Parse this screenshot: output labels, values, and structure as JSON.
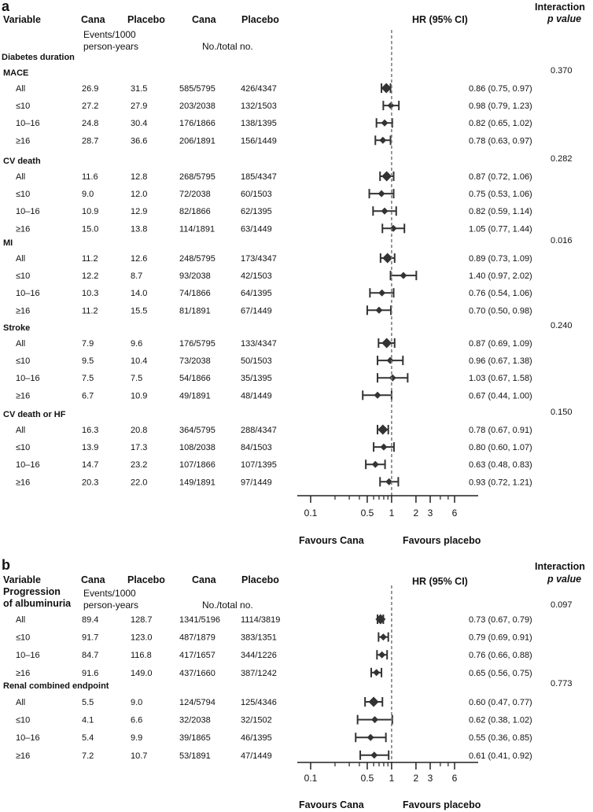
{
  "panel_a": {
    "letter": "a",
    "headers": {
      "variable": "Variable",
      "cana": "Cana",
      "placebo": "Placebo",
      "cana2": "Cana",
      "placebo2": "Placebo",
      "hr": "HR (95% CI)",
      "interaction_1": "Interaction",
      "interaction_2": "p value"
    },
    "subheaders": {
      "events_1": "Events/1000",
      "events_2": "person-years",
      "total": "No./total no.",
      "group": "Diabetes duration"
    },
    "favours": {
      "left": "Favours Cana",
      "right": "Favours placebo"
    }
  },
  "panel_b": {
    "letter": "b",
    "headers": {
      "variable": "Variable",
      "cana": "Cana",
      "placebo": "Placebo",
      "cana2": "Cana",
      "placebo2": "Placebo",
      "hr": "HR (95% CI)",
      "interaction_1": "Interaction",
      "interaction_2": "p value"
    },
    "subheaders": {
      "events_1": "Events/1000",
      "events_2": "person-years",
      "total": "No./total no.",
      "group_1": "Progression",
      "group_2": "of albuminuria"
    },
    "favours": {
      "left": "Favours Cana",
      "right": "Favours placebo"
    }
  },
  "chart_data": [
    {
      "type": "forest",
      "panel": "a",
      "scale": "log",
      "xlim": [
        0.07,
        9
      ],
      "reference_line": 1,
      "ticks": [
        "0.1",
        "0.5",
        "1",
        "2",
        "3",
        "6"
      ],
      "xlabel_left": "Favours Cana",
      "xlabel_right": "Favours placebo",
      "groups": [
        {
          "name": "MACE",
          "p_interaction": "0.370",
          "rows": [
            {
              "label": "All",
              "cana_rate": "26.9",
              "placebo_rate": "31.5",
              "cana_n": "585/5795",
              "placebo_n": "426/4347",
              "hr": 0.86,
              "lo": 0.75,
              "hi": 0.97,
              "hr_text": "0.86 (0.75, 0.97)",
              "overall": true
            },
            {
              "label": "≤10",
              "cana_rate": "27.2",
              "placebo_rate": "27.9",
              "cana_n": "203/2038",
              "placebo_n": "132/1503",
              "hr": 0.98,
              "lo": 0.79,
              "hi": 1.23,
              "hr_text": "0.98 (0.79, 1.23)",
              "overall": false
            },
            {
              "label": "10–16",
              "cana_rate": "24.8",
              "placebo_rate": "30.4",
              "cana_n": "176/1866",
              "placebo_n": "138/1395",
              "hr": 0.82,
              "lo": 0.65,
              "hi": 1.02,
              "hr_text": "0.82 (0.65, 1.02)",
              "overall": false
            },
            {
              "label": "≥16",
              "cana_rate": "28.7",
              "placebo_rate": "36.6",
              "cana_n": "206/1891",
              "placebo_n": "156/1449",
              "hr": 0.78,
              "lo": 0.63,
              "hi": 0.97,
              "hr_text": "0.78 (0.63, 0.97)",
              "overall": false
            }
          ]
        },
        {
          "name": "CV death",
          "p_interaction": "0.282",
          "rows": [
            {
              "label": "All",
              "cana_rate": "11.6",
              "placebo_rate": "12.8",
              "cana_n": "268/5795",
              "placebo_n": "185/4347",
              "hr": 0.87,
              "lo": 0.72,
              "hi": 1.06,
              "hr_text": "0.87 (0.72, 1.06)",
              "overall": true
            },
            {
              "label": "≤10",
              "cana_rate": "9.0",
              "placebo_rate": "12.0",
              "cana_n": "72/2038",
              "placebo_n": "60/1503",
              "hr": 0.75,
              "lo": 0.53,
              "hi": 1.06,
              "hr_text": "0.75 (0.53, 1.06)",
              "overall": false
            },
            {
              "label": "10–16",
              "cana_rate": "10.9",
              "placebo_rate": "12.9",
              "cana_n": "82/1866",
              "placebo_n": "62/1395",
              "hr": 0.82,
              "lo": 0.59,
              "hi": 1.14,
              "hr_text": "0.82 (0.59, 1.14)",
              "overall": false
            },
            {
              "label": "≥16",
              "cana_rate": "15.0",
              "placebo_rate": "13.8",
              "cana_n": "114/1891",
              "placebo_n": "63/1449",
              "hr": 1.05,
              "lo": 0.77,
              "hi": 1.44,
              "hr_text": "1.05 (0.77, 1.44)",
              "overall": false
            }
          ]
        },
        {
          "name": "MI",
          "p_interaction": "0.016",
          "rows": [
            {
              "label": "All",
              "cana_rate": "11.2",
              "placebo_rate": "12.6",
              "cana_n": "248/5795",
              "placebo_n": "173/4347",
              "hr": 0.89,
              "lo": 0.73,
              "hi": 1.09,
              "hr_text": "0.89 (0.73, 1.09)",
              "overall": true
            },
            {
              "label": "≤10",
              "cana_rate": "12.2",
              "placebo_rate": "8.7",
              "cana_n": "93/2038",
              "placebo_n": "42/1503",
              "hr": 1.4,
              "lo": 0.97,
              "hi": 2.02,
              "hr_text": "1.40 (0.97, 2.02)",
              "overall": false
            },
            {
              "label": "10–16",
              "cana_rate": "10.3",
              "placebo_rate": "14.0",
              "cana_n": "74/1866",
              "placebo_n": "64/1395",
              "hr": 0.76,
              "lo": 0.54,
              "hi": 1.06,
              "hr_text": "0.76 (0.54, 1.06)",
              "overall": false
            },
            {
              "label": "≥16",
              "cana_rate": "11.2",
              "placebo_rate": "15.5",
              "cana_n": "81/1891",
              "placebo_n": "67/1449",
              "hr": 0.7,
              "lo": 0.5,
              "hi": 0.98,
              "hr_text": "0.70 (0.50, 0.98)",
              "overall": false
            }
          ]
        },
        {
          "name": "Stroke",
          "p_interaction": "0.240",
          "rows": [
            {
              "label": "All",
              "cana_rate": "7.9",
              "placebo_rate": "9.6",
              "cana_n": "176/5795",
              "placebo_n": "133/4347",
              "hr": 0.87,
              "lo": 0.69,
              "hi": 1.09,
              "hr_text": "0.87 (0.69, 1.09)",
              "overall": true
            },
            {
              "label": "≤10",
              "cana_rate": "9.5",
              "placebo_rate": "10.4",
              "cana_n": "73/2038",
              "placebo_n": "50/1503",
              "hr": 0.96,
              "lo": 0.67,
              "hi": 1.38,
              "hr_text": "0.96 (0.67, 1.38)",
              "overall": false
            },
            {
              "label": "10–16",
              "cana_rate": "7.5",
              "placebo_rate": "7.5",
              "cana_n": "54/1866",
              "placebo_n": "35/1395",
              "hr": 1.03,
              "lo": 0.67,
              "hi": 1.58,
              "hr_text": "1.03 (0.67, 1.58)",
              "overall": false
            },
            {
              "label": "≥16",
              "cana_rate": "6.7",
              "placebo_rate": "10.9",
              "cana_n": "49/1891",
              "placebo_n": "48/1449",
              "hr": 0.67,
              "lo": 0.44,
              "hi": 1.0,
              "hr_text": "0.67 (0.44, 1.00)",
              "overall": false
            }
          ]
        },
        {
          "name": "CV death or HF",
          "p_interaction": "0.150",
          "rows": [
            {
              "label": "All",
              "cana_rate": "16.3",
              "placebo_rate": "20.8",
              "cana_n": "364/5795",
              "placebo_n": "288/4347",
              "hr": 0.78,
              "lo": 0.67,
              "hi": 0.91,
              "hr_text": "0.78 (0.67, 0.91)",
              "overall": true
            },
            {
              "label": "≤10",
              "cana_rate": "13.9",
              "placebo_rate": "17.3",
              "cana_n": "108/2038",
              "placebo_n": "84/1503",
              "hr": 0.8,
              "lo": 0.6,
              "hi": 1.07,
              "hr_text": "0.80 (0.60, 1.07)",
              "overall": false
            },
            {
              "label": "10–16",
              "cana_rate": "14.7",
              "placebo_rate": "23.2",
              "cana_n": "107/1866",
              "placebo_n": "107/1395",
              "hr": 0.63,
              "lo": 0.48,
              "hi": 0.83,
              "hr_text": "0.63 (0.48, 0.83)",
              "overall": false
            },
            {
              "label": "≥16",
              "cana_rate": "20.3",
              "placebo_rate": "22.0",
              "cana_n": "149/1891",
              "placebo_n": "97/1449",
              "hr": 0.93,
              "lo": 0.72,
              "hi": 1.21,
              "hr_text": "0.93 (0.72, 1.21)",
              "overall": false
            }
          ]
        }
      ]
    },
    {
      "type": "forest",
      "panel": "b",
      "scale": "log",
      "xlim": [
        0.07,
        9
      ],
      "reference_line": 1,
      "ticks": [
        "0.1",
        "0.5",
        "1",
        "2",
        "3",
        "6"
      ],
      "xlabel_left": "Favours Cana",
      "xlabel_right": "Favours placebo",
      "groups": [
        {
          "name": "Progression of albuminuria",
          "p_interaction": "0.097",
          "header_in_subheader": true,
          "rows": [
            {
              "label": "All",
              "cana_rate": "89.4",
              "placebo_rate": "128.7",
              "cana_n": "1341/5196",
              "placebo_n": "1114/3819",
              "hr": 0.73,
              "lo": 0.67,
              "hi": 0.79,
              "hr_text": "0.73 (0.67, 0.79)",
              "overall": true
            },
            {
              "label": "≤10",
              "cana_rate": "91.7",
              "placebo_rate": "123.0",
              "cana_n": "487/1879",
              "placebo_n": "383/1351",
              "hr": 0.79,
              "lo": 0.69,
              "hi": 0.91,
              "hr_text": "0.79 (0.69, 0.91)",
              "overall": false
            },
            {
              "label": "10–16",
              "cana_rate": "84.7",
              "placebo_rate": "116.8",
              "cana_n": "417/1657",
              "placebo_n": "344/1226",
              "hr": 0.76,
              "lo": 0.66,
              "hi": 0.88,
              "hr_text": "0.76 (0.66, 0.88)",
              "overall": false
            },
            {
              "label": "≥16",
              "cana_rate": "91.6",
              "placebo_rate": "149.0",
              "cana_n": "437/1660",
              "placebo_n": "387/1242",
              "hr": 0.65,
              "lo": 0.56,
              "hi": 0.75,
              "hr_text": "0.65 (0.56, 0.75)",
              "overall": false
            }
          ]
        },
        {
          "name": "Renal combined endpoint",
          "p_interaction": "0.773",
          "rows": [
            {
              "label": "All",
              "cana_rate": "5.5",
              "placebo_rate": "9.0",
              "cana_n": "124/5794",
              "placebo_n": "125/4346",
              "hr": 0.6,
              "lo": 0.47,
              "hi": 0.77,
              "hr_text": "0.60 (0.47, 0.77)",
              "overall": true
            },
            {
              "label": "≤10",
              "cana_rate": "4.1",
              "placebo_rate": "6.6",
              "cana_n": "32/2038",
              "placebo_n": "32/1502",
              "hr": 0.62,
              "lo": 0.38,
              "hi": 1.02,
              "hr_text": "0.62 (0.38, 1.02)",
              "overall": false
            },
            {
              "label": "10–16",
              "cana_rate": "5.4",
              "placebo_rate": "9.9",
              "cana_n": "39/1865",
              "placebo_n": "46/1395",
              "hr": 0.55,
              "lo": 0.36,
              "hi": 0.85,
              "hr_text": "0.55 (0.36, 0.85)",
              "overall": false
            },
            {
              "label": "≥16",
              "cana_rate": "7.2",
              "placebo_rate": "10.7",
              "cana_n": "53/1891",
              "placebo_n": "47/1449",
              "hr": 0.61,
              "lo": 0.41,
              "hi": 0.92,
              "hr_text": "0.61 (0.41, 0.92)",
              "overall": false
            }
          ]
        }
      ]
    }
  ]
}
